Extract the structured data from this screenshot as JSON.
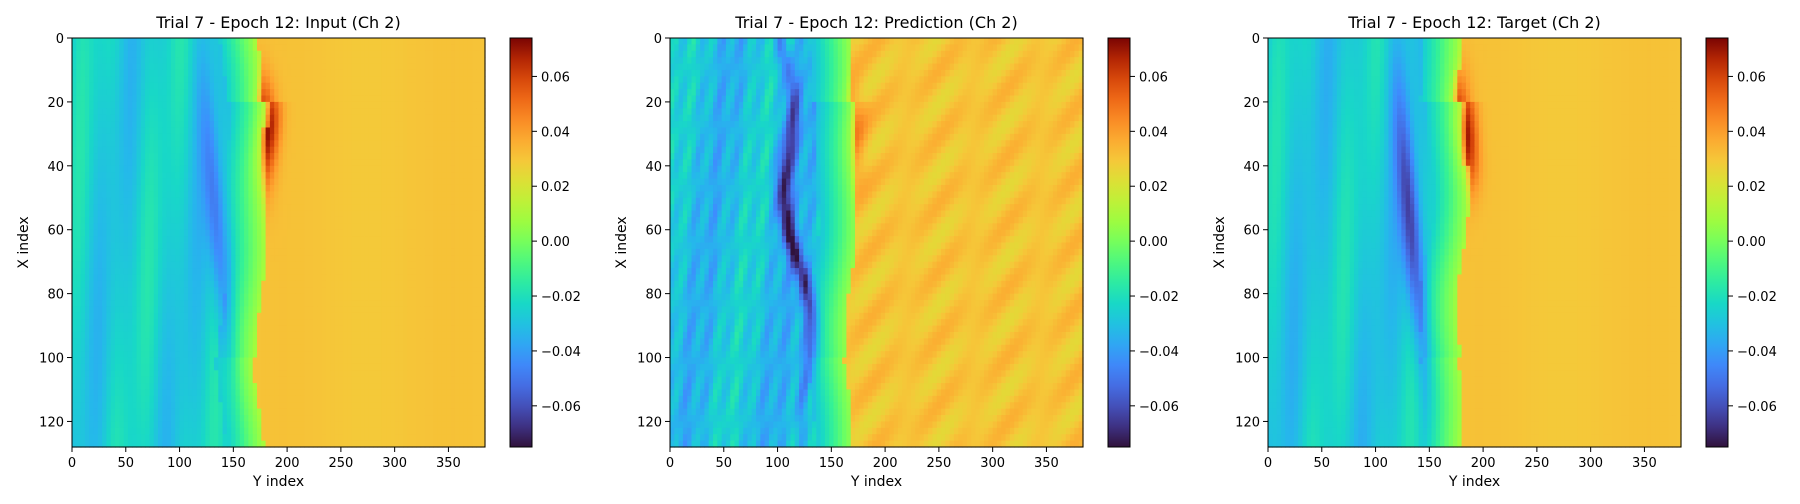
{
  "chart_data": [
    {
      "type": "heatmap",
      "title": "Trial 7 - Epoch 12: Input (Ch 2)",
      "xlabel": "Y index",
      "ylabel": "X index",
      "xlim": [
        0,
        384
      ],
      "ylim": [
        128,
        0
      ],
      "xticks": [
        0,
        50,
        100,
        150,
        200,
        250,
        300,
        350
      ],
      "yticks": [
        0,
        20,
        40,
        60,
        80,
        100,
        120
      ],
      "colorbar": {
        "range": [
          -0.075,
          0.074
        ],
        "ticks": [
          "0.06",
          "0.04",
          "0.02",
          "0.00",
          "−0.02",
          "−0.04",
          "−0.06"
        ],
        "colormap": "turbo"
      },
      "field": {
        "front_y": 178,
        "background_value": -0.026,
        "far_value": 0.03,
        "front_peak": 0.07,
        "vortex_center": [
          60,
          135
        ],
        "vortex_min": -0.05
      }
    },
    {
      "type": "heatmap",
      "title": "Trial 7 - Epoch 12: Prediction (Ch 2)",
      "xlabel": "Y index",
      "ylabel": "X index",
      "xlim": [
        0,
        384
      ],
      "ylim": [
        128,
        0
      ],
      "xticks": [
        0,
        50,
        100,
        150,
        200,
        250,
        300,
        350
      ],
      "yticks": [
        0,
        20,
        40,
        60,
        80,
        100,
        120
      ],
      "colorbar": {
        "range": [
          -0.075,
          0.074
        ],
        "ticks": [
          "0.06",
          "0.04",
          "0.02",
          "0.00",
          "−0.02",
          "−0.04",
          "−0.06"
        ],
        "colormap": "turbo"
      },
      "field": {
        "front_y": 170,
        "background_value": -0.03,
        "far_value": 0.03,
        "front_peak": 0.045,
        "vortex_center": [
          55,
          115
        ],
        "vortex_min": -0.072
      }
    },
    {
      "type": "heatmap",
      "title": "Trial 7 - Epoch 12: Target (Ch 2)",
      "xlabel": "Y index",
      "ylabel": "X index",
      "xlim": [
        0,
        384
      ],
      "ylim": [
        128,
        0
      ],
      "xticks": [
        0,
        50,
        100,
        150,
        200,
        250,
        300,
        350
      ],
      "yticks": [
        0,
        20,
        40,
        60,
        80,
        100,
        120
      ],
      "colorbar": {
        "range": [
          -0.075,
          0.074
        ],
        "ticks": [
          "0.06",
          "0.04",
          "0.02",
          "0.00",
          "−0.02",
          "−0.04",
          "−0.06"
        ],
        "colormap": "turbo"
      },
      "field": {
        "front_y": 182,
        "background_value": -0.027,
        "far_value": 0.03,
        "front_peak": 0.07,
        "vortex_center": [
          60,
          133
        ],
        "vortex_min": -0.065
      }
    }
  ]
}
